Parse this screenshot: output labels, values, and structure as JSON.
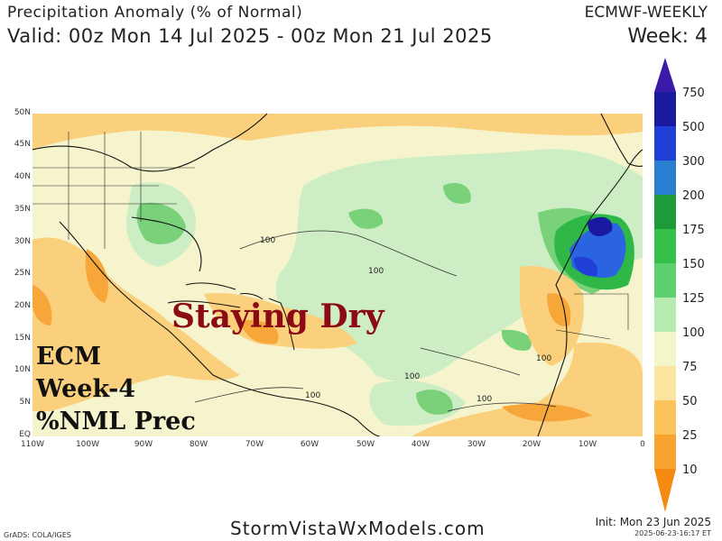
{
  "header": {
    "title": "Precipitation Anomaly (% of Normal)",
    "valid": "Valid: 00z Mon 14 Jul 2025 - 00z Mon 21 Jul 2025",
    "model": "ECMWF-WEEKLY",
    "week": "Week: 4"
  },
  "overlay": {
    "headline": "Staying Dry",
    "line1": "ECM",
    "line2": "Week-4",
    "line3": "%NML Prec"
  },
  "axes": {
    "lat_labels": [
      "50N",
      "45N",
      "40N",
      "35N",
      "30N",
      "25N",
      "20N",
      "15N",
      "10N",
      "5N",
      "EQ"
    ],
    "lon_labels": [
      "110W",
      "100W",
      "90W",
      "80W",
      "70W",
      "60W",
      "50W",
      "40W",
      "30W",
      "20W",
      "10W",
      "0"
    ]
  },
  "contour_labels": [
    "100",
    "100",
    "100",
    "100",
    "100",
    "100"
  ],
  "colorbar": {
    "levels": [
      "750",
      "500",
      "300",
      "200",
      "175",
      "150",
      "125",
      "100",
      "75",
      "50",
      "25",
      "10"
    ],
    "colors": [
      "#1a1aa0",
      "#1f3fd6",
      "#2a7fd0",
      "#1f9a3a",
      "#35c04a",
      "#5fd070",
      "#b6ecb0",
      "#f3f6c8",
      "#fce5a0",
      "#fbc35a",
      "#f7a32d",
      "#f58a12"
    ]
  },
  "footer": {
    "site": "StormVistaWxModels.com",
    "credit": "GrADS: COLA/IGES",
    "init": "Init: Mon 23 Jun 2025",
    "stamp": "2025-06-23-16:17 ET"
  }
}
